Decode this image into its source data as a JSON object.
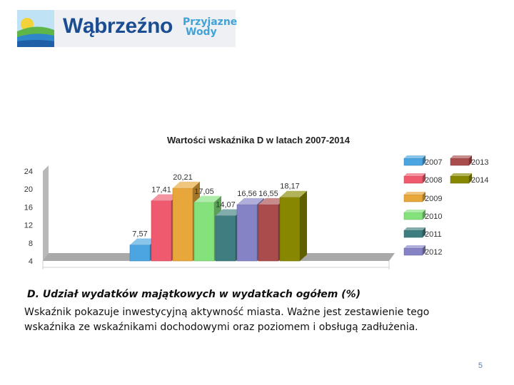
{
  "logo": {
    "name": "Wąbrzeźno",
    "tagline_line1": "Przyjazne",
    "tagline_line2": "Wody"
  },
  "chart_data": {
    "type": "bar",
    "title": "Wartości wskaźnika D w latach 2007-2014",
    "categories": [
      "2007",
      "2008",
      "2009",
      "2010",
      "2011",
      "2012",
      "2013",
      "2014"
    ],
    "values": [
      7.57,
      17.41,
      20.21,
      17.05,
      14.07,
      16.56,
      16.55,
      18.17
    ],
    "data_labels": [
      "7,57",
      "17,41",
      "20,21",
      "17,05",
      "14,07",
      "16,56",
      "16,55",
      "18,17"
    ],
    "y_ticks": [
      "4",
      "8",
      "12",
      "16",
      "20",
      "24"
    ],
    "y_tick_values": [
      4,
      8,
      12,
      16,
      20,
      24
    ],
    "ylim": [
      4,
      24
    ],
    "colors": [
      "#4aa5e0",
      "#ef5a6e",
      "#e8a73a",
      "#84e27c",
      "#3e7e80",
      "#8583c6",
      "#ab4c4c",
      "#888800"
    ],
    "legend_position": "right",
    "grid": false
  },
  "caption": "D. Udział wydatków majątkowych w wydatkach ogółem (%)",
  "description": "Wskaźnik pokazuje inwestycyjną aktywność miasta. Ważne jest zestawienie tego wskaźnika ze wskaźnikami dochodowymi oraz poziomem i obsługą zadłużenia.",
  "page_number": "5"
}
